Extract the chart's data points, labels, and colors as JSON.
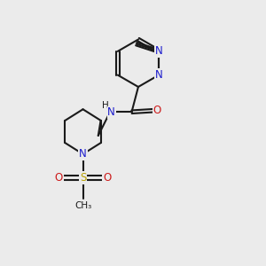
{
  "bg": "#ebebeb",
  "bc": "#1a1a1a",
  "nc": "#1a1acc",
  "oc": "#cc1a1a",
  "sc": "#b8a000",
  "lw": 1.5,
  "sep": 0.06,
  "xlim": [
    0,
    10
  ],
  "ylim": [
    0,
    10
  ]
}
